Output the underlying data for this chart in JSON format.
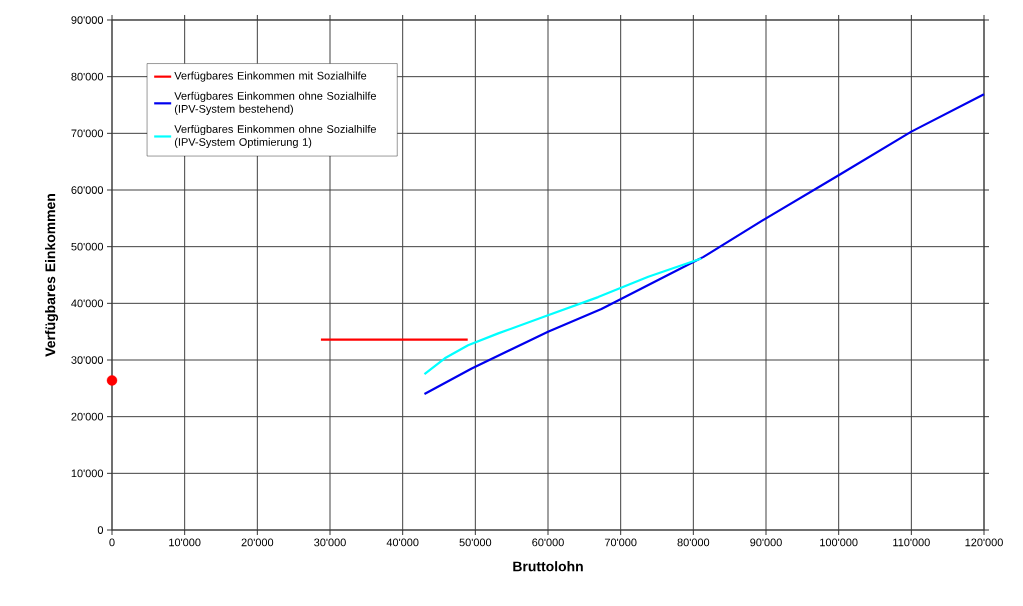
{
  "chart_data": {
    "type": "line",
    "xlabel": "Bruttolohn",
    "ylabel": "Verfügbares Einkommen",
    "series": [
      {
        "name": "Verfügbares Einkommen mit Sozialhilfe",
        "color": "#ff0000",
        "x": [
          28750,
          48950
        ],
        "values": [
          33600,
          33600
        ]
      },
      {
        "name": "Verfügbares Einkommen ohne Sozialhilfe (IPV-System bestehend)",
        "color": "#0000ee",
        "x": [
          43000,
          49500,
          60000,
          67350,
          80000,
          81400,
          90000,
          100000,
          110000,
          120000
        ],
        "values": [
          24000,
          28500,
          35000,
          39000,
          47300,
          48200,
          55000,
          62600,
          70300,
          76900
        ]
      },
      {
        "name": "Verfügbares Einkommen ohne Sozialhilfe (IPV-System Optimierung 1)",
        "color": "#00ffff",
        "x": [
          43000,
          45800,
          49000,
          53150,
          60000,
          66900,
          73800,
          81100
        ],
        "values": [
          27500,
          30300,
          32600,
          34700,
          37900,
          41100,
          44700,
          47900
        ]
      },
      {
        "type": "scatter",
        "color": "#ff0000",
        "x": [
          0
        ],
        "values": [
          26400
        ]
      }
    ],
    "xlim": [
      0,
      120000
    ],
    "ylim": [
      0,
      90000
    ],
    "xticks": [
      0,
      {
        "value": 10000,
        "label": "10'000"
      },
      {
        "value": 20000,
        "label": "20'000"
      },
      {
        "value": 30000,
        "label": "30'000"
      },
      {
        "value": 40000,
        "label": "40'000"
      },
      {
        "value": 50000,
        "label": "50'000"
      },
      {
        "value": 60000,
        "label": "60'000"
      },
      {
        "value": 70000,
        "label": "70'000"
      },
      {
        "value": 80000,
        "label": "80'000"
      },
      {
        "value": 90000,
        "label": "90'000"
      },
      {
        "value": 100000,
        "label": "100'000"
      },
      {
        "value": 110000,
        "label": "110'000"
      },
      {
        "value": 120000,
        "label": "120'000"
      }
    ],
    "yticks": [
      0,
      {
        "value": 10000,
        "label": "10'000"
      },
      {
        "value": 20000,
        "label": "20'000"
      },
      {
        "value": 30000,
        "label": "30'000"
      },
      {
        "value": 40000,
        "label": "40'000"
      },
      {
        "value": 50000,
        "label": "50'000"
      },
      {
        "value": 60000,
        "label": "60'000"
      },
      {
        "value": 70000,
        "label": "70'000"
      },
      {
        "value": 80000,
        "label": "80'000"
      },
      {
        "value": 90000,
        "label": "90'000"
      }
    ],
    "grid": true,
    "legend": "top left"
  }
}
